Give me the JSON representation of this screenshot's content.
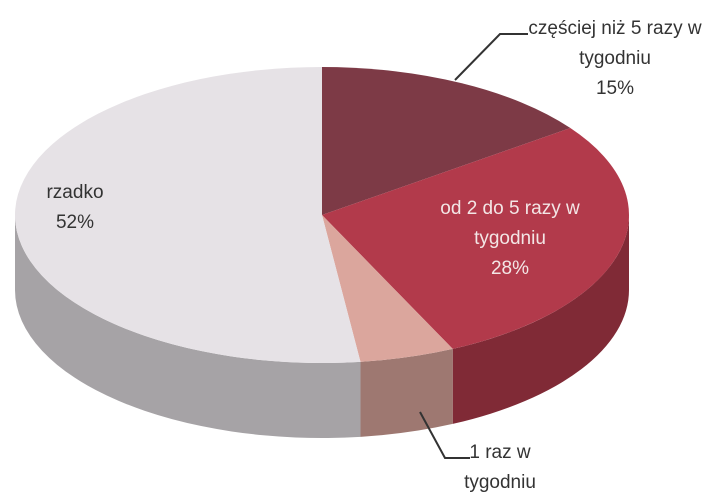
{
  "chart_data": {
    "type": "pie",
    "categories": [
      "częściej niż 5 razy w tygodniu",
      "od 2 do 5 razy w tygodniu",
      "1 raz w tygodniu",
      "rzadko"
    ],
    "values": [
      15,
      28,
      5,
      52
    ],
    "value_labels": [
      "15%",
      "28%",
      null,
      "52%"
    ],
    "colors": [
      "#7d3a46",
      "#b23a4b",
      "#dba69d",
      "#e6e2e6"
    ]
  }
}
